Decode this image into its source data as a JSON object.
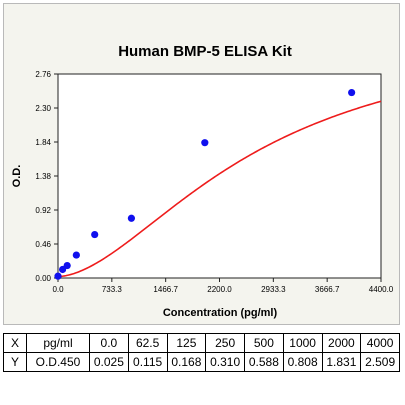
{
  "chart_data": {
    "type": "scatter",
    "title": "Human BMP-5 ELISA Kit",
    "xlabel": "Concentration (pg/ml)",
    "ylabel": "O.D.",
    "xlim": [
      0,
      4400
    ],
    "ylim": [
      0,
      2.76
    ],
    "x_ticks": [
      "0.0",
      "733.3",
      "1466.7",
      "2200.0",
      "2933.3",
      "3666.7",
      "4400.0"
    ],
    "x_tick_values": [
      0,
      733.3,
      1466.7,
      2200.0,
      2933.3,
      3666.7,
      4400.0
    ],
    "y_ticks": [
      "0.00",
      "0.46",
      "0.92",
      "1.38",
      "1.84",
      "2.30",
      "2.76"
    ],
    "y_tick_values": [
      0,
      0.46,
      0.92,
      1.38,
      1.84,
      2.3,
      2.76
    ],
    "grid": false,
    "series": [
      {
        "points": [
          {
            "x": 0,
            "y": 0.025
          },
          {
            "x": 62.5,
            "y": 0.115
          },
          {
            "x": 125,
            "y": 0.168
          },
          {
            "x": 250,
            "y": 0.31
          },
          {
            "x": 500,
            "y": 0.588
          },
          {
            "x": 1000,
            "y": 0.808
          },
          {
            "x": 2000,
            "y": 1.831
          },
          {
            "x": 4000,
            "y": 2.509
          }
        ],
        "color": "#1010ee"
      }
    ],
    "fit_curve": {
      "type": "4PL",
      "A": 0.02,
      "B": 1.75,
      "C": 2700,
      "D": 3.4,
      "color": "#ee1c1c"
    }
  },
  "table": {
    "rows": [
      {
        "head": "X",
        "unit": "pg/ml",
        "values": [
          "0.0",
          "62.5",
          "125",
          "250",
          "500",
          "1000",
          "2000",
          "4000"
        ]
      },
      {
        "head": "Y",
        "unit": "O.D.450",
        "values": [
          "0.025",
          "0.115",
          "0.168",
          "0.310",
          "0.588",
          "0.808",
          "1.831",
          "2.509"
        ]
      }
    ]
  },
  "colors": {
    "plot_background": "#ffffff",
    "frame_background": "#f4f4ee",
    "axis": "#222222"
  }
}
